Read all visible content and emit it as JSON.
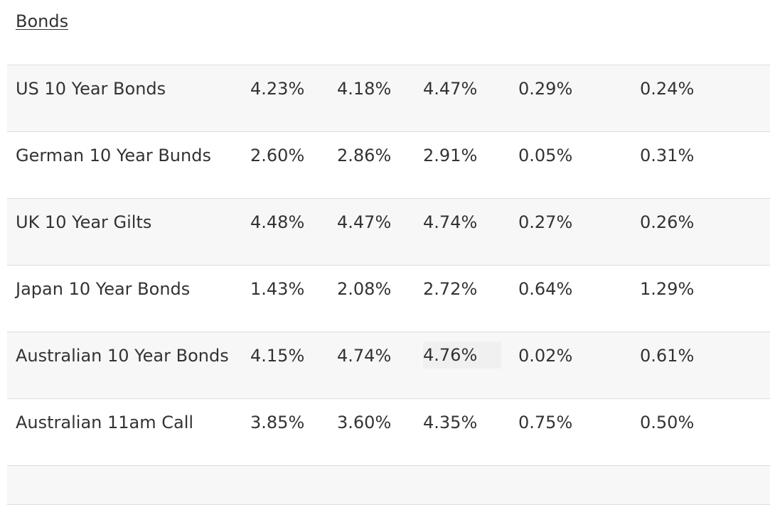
{
  "section": {
    "title": "Bonds"
  },
  "rows": [
    {
      "name": "US 10 Year Bonds",
      "values": [
        "4.23%",
        "4.18%",
        "4.47%",
        "0.29%",
        "0.24%"
      ]
    },
    {
      "name": "German 10 Year Bunds",
      "values": [
        "2.60%",
        "2.86%",
        "2.91%",
        "0.05%",
        "0.31%"
      ]
    },
    {
      "name": "UK 10 Year Gilts",
      "values": [
        "4.48%",
        "4.47%",
        "4.74%",
        "0.27%",
        "0.26%"
      ]
    },
    {
      "name": "Japan 10 Year Bonds",
      "values": [
        "1.43%",
        "2.08%",
        "2.72%",
        "0.64%",
        "1.29%"
      ]
    },
    {
      "name": "Australian 10 Year Bonds",
      "values": [
        "4.15%",
        "4.74%",
        "4.76%",
        "0.02%",
        "0.61%"
      ]
    },
    {
      "name": "Australian 11am Call",
      "values": [
        "3.85%",
        "3.60%",
        "4.35%",
        "0.75%",
        "0.50%"
      ]
    },
    {
      "name": "",
      "values": [
        "",
        "",
        "",
        "",
        ""
      ]
    }
  ],
  "colors": {
    "text": "#333333",
    "row_shade": "#f7f7f7",
    "divider": "#dcdcdc",
    "hover_cell": "#f0f0f0"
  }
}
